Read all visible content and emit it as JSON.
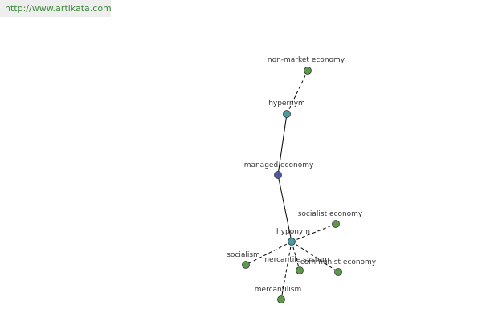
{
  "header": {
    "url": "http://www.artikata.com"
  },
  "nodes": [
    {
      "label": "non-market economy"
    },
    {
      "label": "hypernym"
    },
    {
      "label": "managed economy"
    },
    {
      "label": "hyponym"
    },
    {
      "label": "socialist economy"
    },
    {
      "label": "socialism"
    },
    {
      "label": "mercantile system"
    },
    {
      "label": "communist economy"
    },
    {
      "label": "mercantilism"
    }
  ]
}
